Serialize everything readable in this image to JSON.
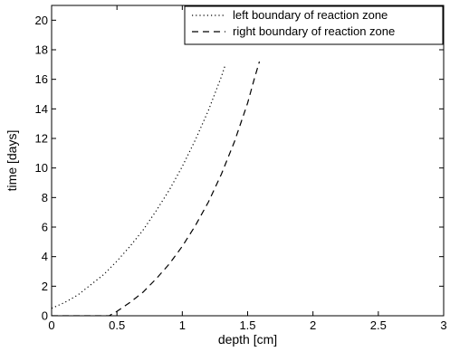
{
  "chart_data": {
    "type": "line",
    "xlabel": "depth [cm]",
    "ylabel": "time [days]",
    "xlim": [
      0,
      3
    ],
    "ylim": [
      0,
      21
    ],
    "xticks": [
      "0",
      "0.5",
      "1",
      "1.5",
      "2",
      "2.5",
      "3"
    ],
    "yticks": [
      "0",
      "2",
      "4",
      "6",
      "8",
      "10",
      "12",
      "14",
      "16",
      "18",
      "20"
    ],
    "grid": false,
    "legend_position": "top-right",
    "series": [
      {
        "name": "left boundary of reaction zone",
        "line_style": "dotted",
        "color": "#000000",
        "x": [
          0.0,
          0.05,
          0.1,
          0.2,
          0.3,
          0.4,
          0.5,
          0.6,
          0.7,
          0.8,
          0.9,
          1.0,
          1.1,
          1.2,
          1.3,
          1.33
        ],
        "y": [
          0.5,
          0.7,
          0.9,
          1.4,
          2.1,
          2.8,
          3.7,
          4.7,
          5.8,
          7.1,
          8.5,
          10.1,
          11.9,
          13.9,
          16.2,
          17.0
        ]
      },
      {
        "name": "right boundary of reaction zone",
        "line_style": "dashed",
        "color": "#000000",
        "x": [
          0.0,
          0.3,
          0.44,
          0.5,
          0.6,
          0.7,
          0.8,
          0.9,
          1.0,
          1.1,
          1.2,
          1.3,
          1.4,
          1.5,
          1.55,
          1.59
        ],
        "y": [
          0.0,
          0.0,
          0.0,
          0.3,
          0.9,
          1.6,
          2.5,
          3.5,
          4.7,
          6.1,
          7.7,
          9.6,
          11.8,
          14.4,
          16.0,
          17.2
        ]
      }
    ]
  }
}
